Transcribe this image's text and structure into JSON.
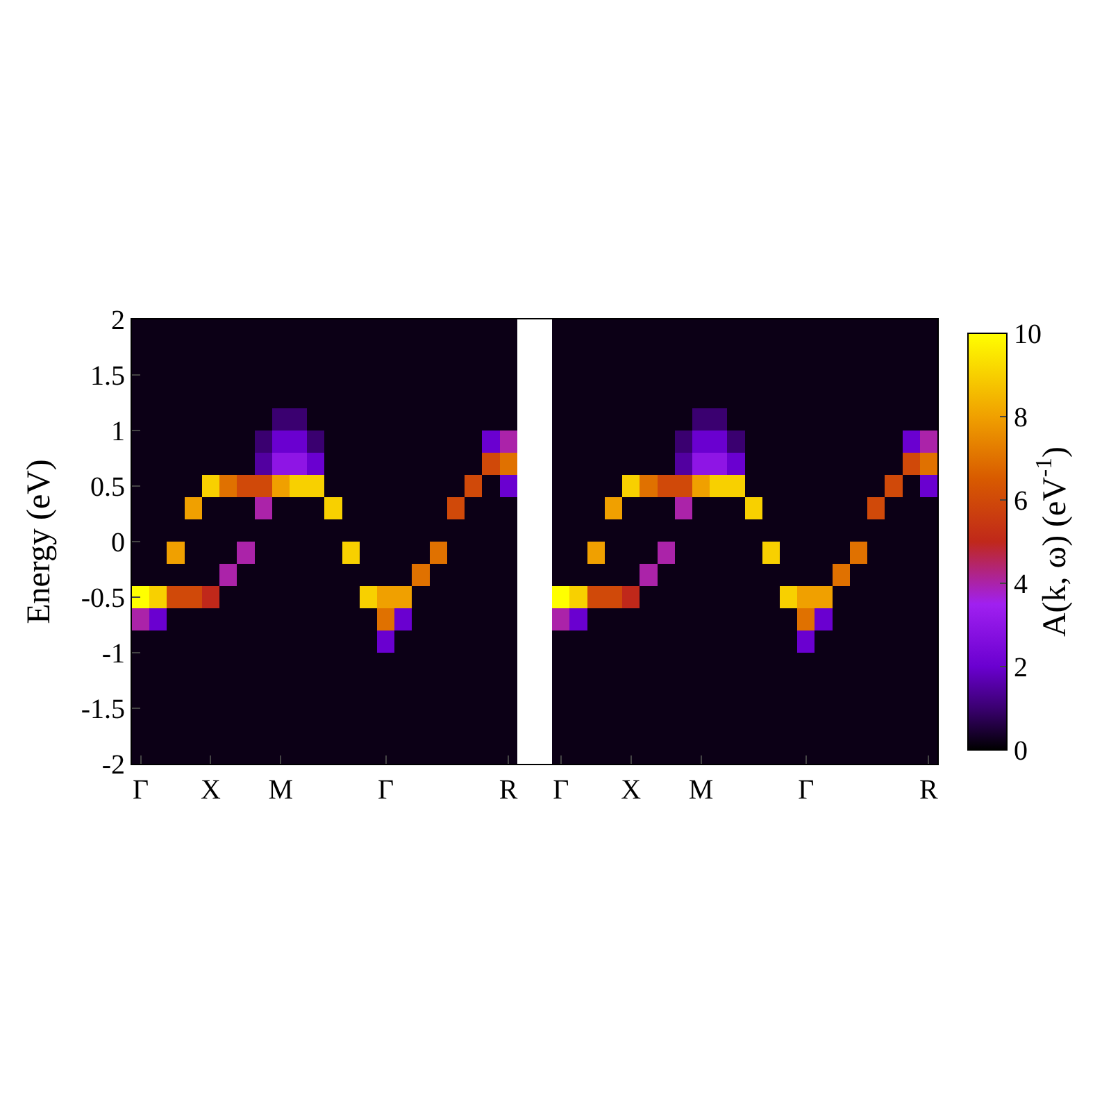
{
  "chart_data": {
    "type": "heatmap",
    "ylabel": "Energy (eV)",
    "clabel": "A(k, ω) (eV$^{-1}$)",
    "ylim": [
      -2,
      2
    ],
    "clim": [
      0,
      10
    ],
    "cticks": [
      0,
      2,
      4,
      6,
      8,
      10
    ],
    "categories": [
      "Γ",
      null,
      null,
      null,
      "X",
      null,
      null,
      null,
      "M",
      null,
      null,
      null,
      null,
      null,
      "Γ",
      null,
      null,
      null,
      null,
      null,
      null,
      "R",
      null,
      null,
      "Γ",
      null,
      null,
      null,
      "X",
      null,
      null,
      null,
      "M",
      null,
      null,
      null,
      null,
      null,
      "Γ",
      null,
      null,
      null,
      null,
      null,
      null,
      "R"
    ],
    "yticks": [
      -2,
      -1.5,
      -1,
      -0.5,
      0,
      0.5,
      1,
      1.5,
      2
    ],
    "cells": [
      [
        0.2,
        0.2,
        0.2,
        0.2,
        0.2,
        0.2,
        0.2,
        0.2,
        0.2,
        0.2,
        0.2,
        0.2,
        0.2,
        0.2,
        0.2,
        0.2,
        0.2,
        0.2,
        0.2,
        0.2,
        0.2,
        0.2,
        null,
        null,
        0.2,
        0.2,
        0.2,
        0.2,
        0.2,
        0.2,
        0.2,
        0.2,
        0.2,
        0.2,
        0.2,
        0.2,
        0.2,
        0.2,
        0.2,
        0.2,
        0.2,
        0.2,
        0.2,
        0.2,
        0.2,
        0.2
      ],
      [
        0.2,
        0.2,
        0.2,
        0.2,
        0.2,
        0.2,
        0.2,
        0.2,
        0.2,
        0.2,
        0.2,
        0.2,
        0.2,
        0.2,
        0.2,
        0.2,
        0.2,
        0.2,
        0.2,
        0.2,
        0.2,
        0.2,
        null,
        null,
        0.2,
        0.2,
        0.2,
        0.2,
        0.2,
        0.2,
        0.2,
        0.2,
        0.2,
        0.2,
        0.2,
        0.2,
        0.2,
        0.2,
        0.2,
        0.2,
        0.2,
        0.2,
        0.2,
        0.2,
        0.2,
        0.2
      ],
      [
        0.2,
        0.2,
        0.2,
        0.2,
        0.2,
        0.2,
        0.2,
        0.2,
        0.2,
        0.2,
        0.2,
        0.2,
        0.2,
        0.2,
        0.2,
        0.2,
        0.2,
        0.2,
        0.2,
        0.2,
        0.2,
        0.2,
        null,
        null,
        0.2,
        0.2,
        0.2,
        0.2,
        0.2,
        0.2,
        0.2,
        0.2,
        0.2,
        0.2,
        0.2,
        0.2,
        0.2,
        0.2,
        0.2,
        0.2,
        0.2,
        0.2,
        0.2,
        0.2,
        0.2,
        0.2
      ],
      [
        0.2,
        0.2,
        0.2,
        0.2,
        0.2,
        0.2,
        0.2,
        0.2,
        0.2,
        0.2,
        0.2,
        0.2,
        0.2,
        0.2,
        0.2,
        0.2,
        0.2,
        0.2,
        0.2,
        0.2,
        0.2,
        0.2,
        null,
        null,
        0.2,
        0.2,
        0.2,
        0.2,
        0.2,
        0.2,
        0.2,
        0.2,
        0.2,
        0.2,
        0.2,
        0.2,
        0.2,
        0.2,
        0.2,
        0.2,
        0.2,
        0.2,
        0.2,
        0.2,
        0.2,
        0.2
      ],
      [
        0.2,
        0.2,
        0.2,
        0.2,
        0.2,
        0.2,
        0.2,
        0.2,
        1,
        1,
        0.2,
        0.2,
        0.2,
        0.2,
        0.2,
        0.2,
        0.2,
        0.2,
        0.2,
        0.2,
        0.2,
        0.2,
        null,
        null,
        0.2,
        0.2,
        0.2,
        0.2,
        0.2,
        0.2,
        0.2,
        0.2,
        1,
        1,
        0.2,
        0.2,
        0.2,
        0.2,
        0.2,
        0.2,
        0.2,
        0.2,
        0.2,
        0.2,
        0.2,
        0.2
      ],
      [
        0.2,
        0.2,
        0.2,
        0.2,
        0.2,
        0.2,
        0.2,
        1,
        2,
        2,
        1,
        0.2,
        0.2,
        0.2,
        0.2,
        0.2,
        0.2,
        0.2,
        0.2,
        0.2,
        2,
        4,
        null,
        null,
        0.2,
        0.2,
        0.2,
        0.2,
        0.2,
        0.2,
        0.2,
        1,
        2,
        2,
        1,
        0.2,
        0.2,
        0.2,
        0.2,
        0.2,
        0.2,
        0.2,
        0.2,
        0.2,
        2,
        4
      ],
      [
        0.2,
        0.2,
        0.2,
        0.2,
        0.2,
        0.2,
        0.2,
        1.5,
        3,
        3,
        2,
        0.2,
        0.2,
        0.2,
        0.2,
        0.2,
        0.2,
        0.2,
        0.2,
        0.2,
        6,
        7,
        null,
        null,
        0.2,
        0.2,
        0.2,
        0.2,
        0.2,
        0.2,
        0.2,
        1.5,
        3,
        3,
        2,
        0.2,
        0.2,
        0.2,
        0.2,
        0.2,
        0.2,
        0.2,
        0.2,
        0.2,
        6,
        7
      ],
      [
        0.2,
        0.2,
        0.2,
        0.2,
        9,
        7,
        6,
        6,
        8,
        9,
        9,
        0.2,
        0.2,
        0.2,
        0.2,
        0.2,
        0.2,
        0.2,
        0.2,
        6,
        0.2,
        2,
        null,
        null,
        0.2,
        0.2,
        0.2,
        0.2,
        9,
        7,
        6,
        6,
        8,
        9,
        9,
        0.2,
        0.2,
        0.2,
        0.2,
        0.2,
        0.2,
        0.2,
        0.2,
        6,
        0.2,
        2
      ],
      [
        0.2,
        0.2,
        0.2,
        8,
        0.2,
        0.2,
        0.2,
        4,
        0.2,
        0.2,
        0.2,
        9,
        0.2,
        0.2,
        0.2,
        0.2,
        0.2,
        0.2,
        6,
        0.2,
        0.2,
        0.2,
        null,
        null,
        0.2,
        0.2,
        0.2,
        8,
        0.2,
        0.2,
        0.2,
        4,
        0.2,
        0.2,
        0.2,
        9,
        0.2,
        0.2,
        0.2,
        0.2,
        0.2,
        0.2,
        6,
        0.2,
        0.2,
        0.2
      ],
      [
        0.2,
        0.2,
        0.2,
        0.2,
        0.2,
        0.2,
        0.2,
        0.2,
        0.2,
        0.2,
        0.2,
        0.2,
        0.2,
        0.2,
        0.2,
        0.2,
        0.2,
        0.2,
        0.2,
        0.2,
        0.2,
        0.2,
        null,
        null,
        0.2,
        0.2,
        0.2,
        0.2,
        0.2,
        0.2,
        0.2,
        0.2,
        0.2,
        0.2,
        0.2,
        0.2,
        0.2,
        0.2,
        0.2,
        0.2,
        0.2,
        0.2,
        0.2,
        0.2,
        0.2,
        0.2
      ],
      [
        0.2,
        0.2,
        8,
        0.2,
        0.2,
        0.2,
        4,
        0.2,
        0.2,
        0.2,
        0.2,
        0.2,
        9,
        0.2,
        0.2,
        0.2,
        0.2,
        7,
        0.2,
        0.2,
        0.2,
        0.2,
        null,
        null,
        0.2,
        0.2,
        8,
        0.2,
        0.2,
        0.2,
        4,
        0.2,
        0.2,
        0.2,
        0.2,
        0.2,
        9,
        0.2,
        0.2,
        0.2,
        0.2,
        7,
        0.2,
        0.2,
        0.2,
        0.2
      ],
      [
        0.2,
        0.2,
        0.2,
        0.2,
        0.2,
        4,
        0.2,
        0.2,
        0.2,
        0.2,
        0.2,
        0.2,
        0.2,
        0.2,
        0.2,
        0.2,
        7,
        0.2,
        0.2,
        0.2,
        0.2,
        0.2,
        null,
        null,
        0.2,
        0.2,
        0.2,
        0.2,
        0.2,
        4,
        0.2,
        0.2,
        0.2,
        0.2,
        0.2,
        0.2,
        0.2,
        0.2,
        0.2,
        0.2,
        7,
        0.2,
        0.2,
        0.2,
        0.2,
        0.2
      ],
      [
        10,
        9,
        6,
        6,
        5,
        0.2,
        0.2,
        0.2,
        0.2,
        0.2,
        0.2,
        0.2,
        0.2,
        9,
        8,
        8,
        0.2,
        0.2,
        0.2,
        0.2,
        0.2,
        0.2,
        null,
        null,
        10,
        9,
        6,
        6,
        5,
        0.2,
        0.2,
        0.2,
        0.2,
        0.2,
        0.2,
        0.2,
        0.2,
        9,
        8,
        8,
        0.2,
        0.2,
        0.2,
        0.2,
        0.2,
        0.2
      ],
      [
        4,
        2,
        0.2,
        0.2,
        0.2,
        0.2,
        0.2,
        0.2,
        0.2,
        0.2,
        0.2,
        0.2,
        0.2,
        0.2,
        7,
        2,
        0.2,
        0.2,
        0.2,
        0.2,
        0.2,
        0.2,
        null,
        null,
        4,
        2,
        0.2,
        0.2,
        0.2,
        0.2,
        0.2,
        0.2,
        0.2,
        0.2,
        0.2,
        0.2,
        0.2,
        0.2,
        7,
        2,
        0.2,
        0.2,
        0.2,
        0.2,
        0.2,
        0.2
      ],
      [
        0.2,
        0.2,
        0.2,
        0.2,
        0.2,
        0.2,
        0.2,
        0.2,
        0.2,
        0.2,
        0.2,
        0.2,
        0.2,
        0.2,
        2,
        0.2,
        0.2,
        0.2,
        0.2,
        0.2,
        0.2,
        0.2,
        null,
        null,
        0.2,
        0.2,
        0.2,
        0.2,
        0.2,
        0.2,
        0.2,
        0.2,
        0.2,
        0.2,
        0.2,
        0.2,
        0.2,
        0.2,
        2,
        0.2,
        0.2,
        0.2,
        0.2,
        0.2,
        0.2,
        0.2
      ],
      [
        0.2,
        0.2,
        0.2,
        0.2,
        0.2,
        0.2,
        0.2,
        0.2,
        0.2,
        0.2,
        0.2,
        0.2,
        0.2,
        0.2,
        0.2,
        0.2,
        0.2,
        0.2,
        0.2,
        0.2,
        0.2,
        0.2,
        null,
        null,
        0.2,
        0.2,
        0.2,
        0.2,
        0.2,
        0.2,
        0.2,
        0.2,
        0.2,
        0.2,
        0.2,
        0.2,
        0.2,
        0.2,
        0.2,
        0.2,
        0.2,
        0.2,
        0.2,
        0.2,
        0.2,
        0.2
      ],
      [
        0.2,
        0.2,
        0.2,
        0.2,
        0.2,
        0.2,
        0.2,
        0.2,
        0.2,
        0.2,
        0.2,
        0.2,
        0.2,
        0.2,
        0.2,
        0.2,
        0.2,
        0.2,
        0.2,
        0.2,
        0.2,
        0.2,
        null,
        null,
        0.2,
        0.2,
        0.2,
        0.2,
        0.2,
        0.2,
        0.2,
        0.2,
        0.2,
        0.2,
        0.2,
        0.2,
        0.2,
        0.2,
        0.2,
        0.2,
        0.2,
        0.2,
        0.2,
        0.2,
        0.2,
        0.2
      ],
      [
        0.2,
        0.2,
        0.2,
        0.2,
        0.2,
        0.2,
        0.2,
        0.2,
        0.2,
        0.2,
        0.2,
        0.2,
        0.2,
        0.2,
        0.2,
        0.2,
        0.2,
        0.2,
        0.2,
        0.2,
        0.2,
        0.2,
        null,
        null,
        0.2,
        0.2,
        0.2,
        0.2,
        0.2,
        0.2,
        0.2,
        0.2,
        0.2,
        0.2,
        0.2,
        0.2,
        0.2,
        0.2,
        0.2,
        0.2,
        0.2,
        0.2,
        0.2,
        0.2,
        0.2,
        0.2
      ],
      [
        0.2,
        0.2,
        0.2,
        0.2,
        0.2,
        0.2,
        0.2,
        0.2,
        0.2,
        0.2,
        0.2,
        0.2,
        0.2,
        0.2,
        0.2,
        0.2,
        0.2,
        0.2,
        0.2,
        0.2,
        0.2,
        0.2,
        null,
        null,
        0.2,
        0.2,
        0.2,
        0.2,
        0.2,
        0.2,
        0.2,
        0.2,
        0.2,
        0.2,
        0.2,
        0.2,
        0.2,
        0.2,
        0.2,
        0.2,
        0.2,
        0.2,
        0.2,
        0.2,
        0.2,
        0.2
      ],
      [
        0.2,
        0.2,
        0.2,
        0.2,
        0.2,
        0.2,
        0.2,
        0.2,
        0.2,
        0.2,
        0.2,
        0.2,
        0.2,
        0.2,
        0.2,
        0.2,
        0.2,
        0.2,
        0.2,
        0.2,
        0.2,
        0.2,
        null,
        null,
        0.2,
        0.2,
        0.2,
        0.2,
        0.2,
        0.2,
        0.2,
        0.2,
        0.2,
        0.2,
        0.2,
        0.2,
        0.2,
        0.2,
        0.2,
        0.2,
        0.2,
        0.2,
        0.2,
        0.2,
        0.2,
        0.2
      ]
    ]
  }
}
